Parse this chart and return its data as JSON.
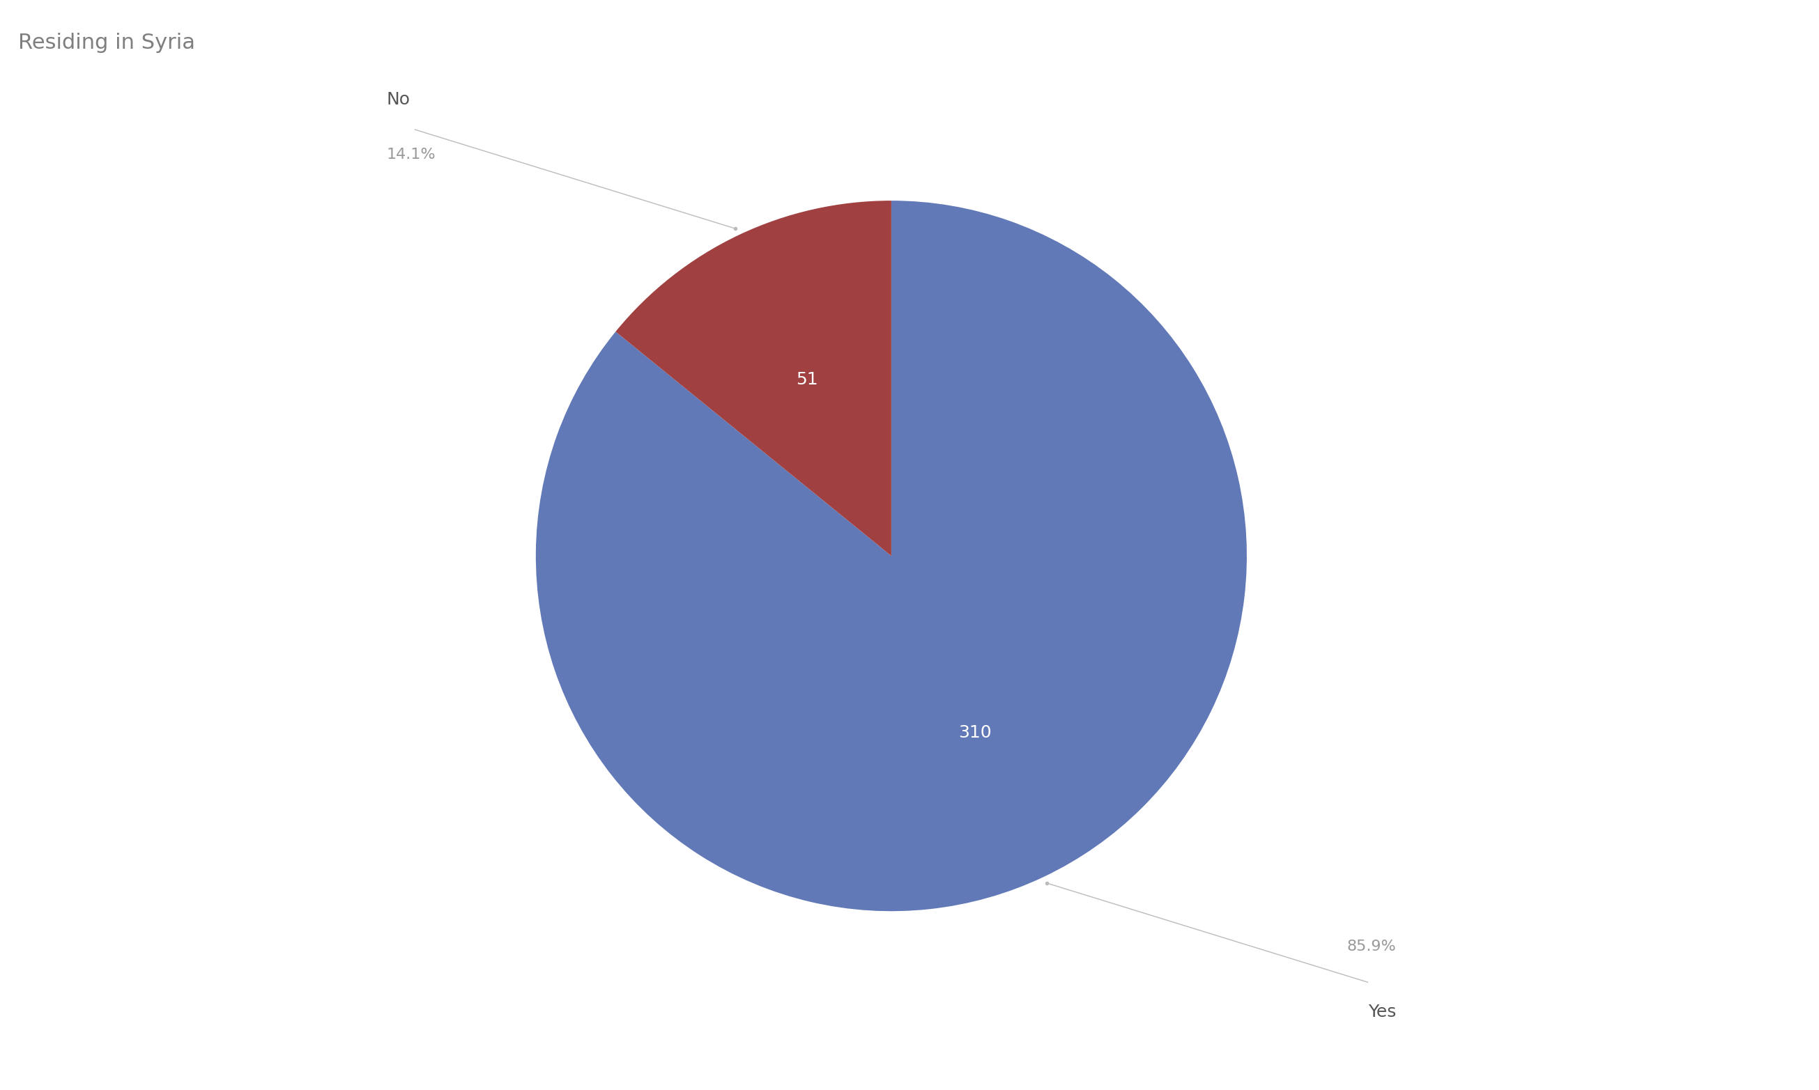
{
  "title": "Residing in Syria",
  "slices": [
    {
      "label": "Yes",
      "value": 310,
      "percentage": 85.9,
      "color": "#6279b8"
    },
    {
      "label": "No",
      "value": 51,
      "percentage": 14.1,
      "color": "#a04040"
    }
  ],
  "background_color": "#ffffff",
  "title_color": "#7f7f7f",
  "title_fontsize": 22,
  "label_fontsize": 18,
  "value_fontsize": 18,
  "pct_fontsize": 16,
  "line_color": "#bbbbbb",
  "dot_color": "#bbbbbb"
}
